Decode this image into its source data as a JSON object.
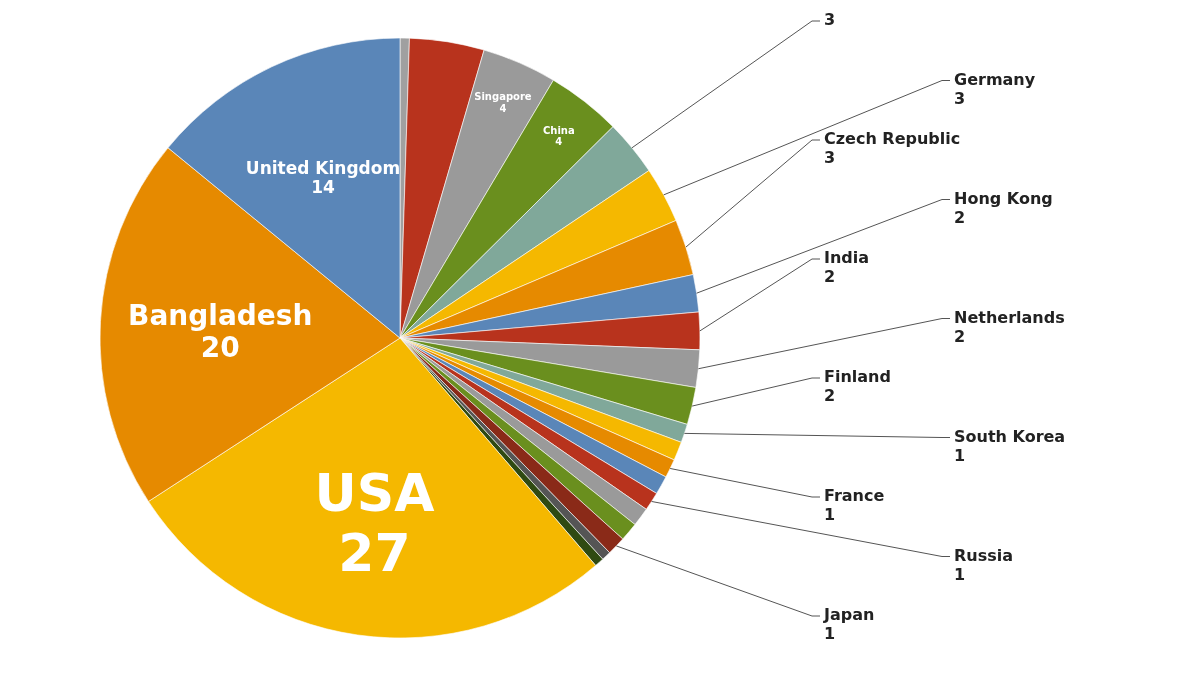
{
  "chart_data": {
    "type": "pie",
    "categories": [
      null,
      null,
      "Singapore",
      "China",
      null,
      "Germany",
      "Czech Republic",
      "Hong Kong",
      "India",
      "Netherlands",
      "Finland",
      "South Korea",
      null,
      "France",
      null,
      "Russia",
      null,
      null,
      "Japan",
      null,
      null,
      "USA",
      "Bangladesh",
      "United Kingdom"
    ],
    "values": [
      0.5,
      4,
      4,
      4,
      3,
      3,
      3,
      2,
      2,
      2,
      2,
      1,
      1,
      1,
      1,
      1,
      1,
      1,
      1,
      0.5,
      0.5,
      27,
      20,
      14
    ],
    "value_labels": [
      null,
      null,
      "4",
      "4",
      "3",
      "3",
      "3",
      "2",
      "2",
      "2",
      "2",
      "1",
      null,
      "1",
      null,
      "1",
      null,
      null,
      "1",
      null,
      null,
      "27",
      "20",
      "14"
    ],
    "colors": [
      "#a0a0a0",
      "#b8331d",
      "#9a9a9a",
      "#6a8f1e",
      "#80a89a",
      "#f5b800",
      "#e68a00",
      "#5a86b8",
      "#b8331d",
      "#9a9a9a",
      "#6a8f1e",
      "#80a89a",
      "#f5b800",
      "#e68a00",
      "#5a86b8",
      "#b8331d",
      "#9a9a9a",
      "#6a8f1e",
      "#8a2a18",
      "#555555",
      "#2f4a12",
      "#f5b800",
      "#e68a00",
      "#5a86b8"
    ]
  }
}
